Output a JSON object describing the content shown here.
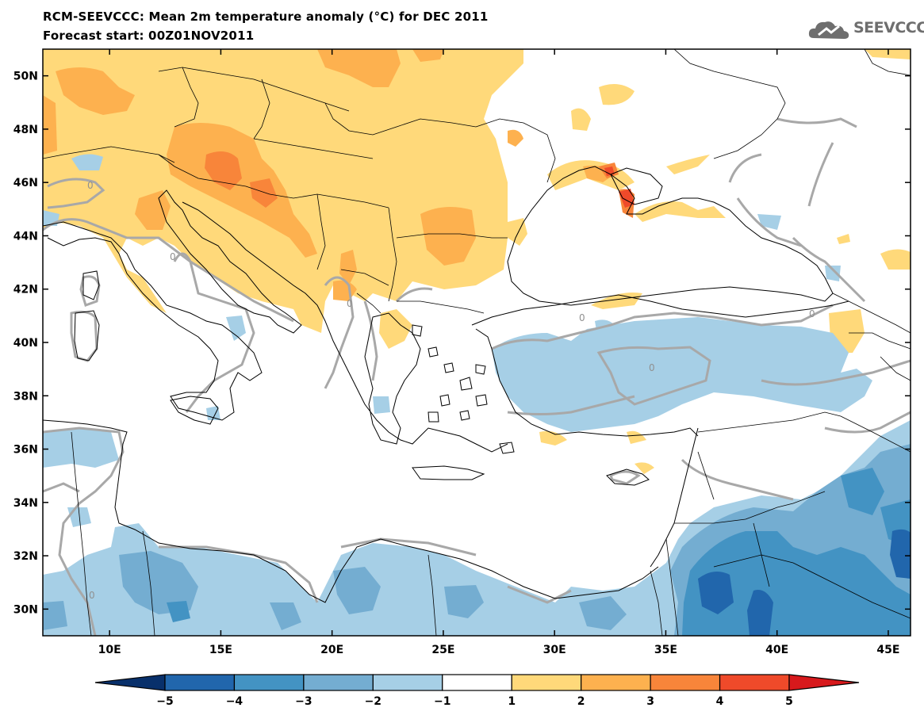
{
  "title": "RCM-SEEVCCC: Mean 2m temperature anomaly (°C) for DEC 2011",
  "subtitle": "Forecast start: 00Z01NOV2011",
  "logo_text": "SEEVCCC",
  "map": {
    "lon_range": [
      7,
      46
    ],
    "lat_range": [
      29,
      51
    ],
    "lat_ticks": [
      {
        "value": 50,
        "label": "50N"
      },
      {
        "value": 48,
        "label": "48N"
      },
      {
        "value": 46,
        "label": "46N"
      },
      {
        "value": 44,
        "label": "44N"
      },
      {
        "value": 42,
        "label": "42N"
      },
      {
        "value": 40,
        "label": "40N"
      },
      {
        "value": 38,
        "label": "38N"
      },
      {
        "value": 36,
        "label": "36N"
      },
      {
        "value": 34,
        "label": "34N"
      },
      {
        "value": 32,
        "label": "32N"
      },
      {
        "value": 30,
        "label": "30N"
      }
    ],
    "lon_ticks": [
      {
        "value": 10,
        "label": "10E"
      },
      {
        "value": 15,
        "label": "15E"
      },
      {
        "value": 20,
        "label": "20E"
      },
      {
        "value": 25,
        "label": "25E"
      },
      {
        "value": 30,
        "label": "30E"
      },
      {
        "value": 35,
        "label": "35E"
      },
      {
        "value": 40,
        "label": "40E"
      },
      {
        "value": 45,
        "label": "45E"
      }
    ],
    "contour_label": "0"
  },
  "colorbar": {
    "labels": [
      "−5",
      "−4",
      "−3",
      "−2",
      "−1",
      "1",
      "2",
      "3",
      "4",
      "5"
    ],
    "colors": [
      "#08306b",
      "#2166ac",
      "#4393c3",
      "#74add1",
      "#a6cfe6",
      "#ffffff",
      "#ffd97a",
      "#fdb14f",
      "#f8853a",
      "#ef4a2a",
      "#d7191c"
    ]
  }
}
